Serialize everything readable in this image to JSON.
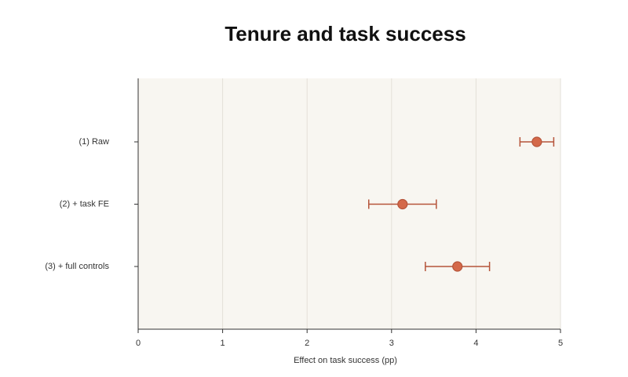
{
  "chart_data": {
    "type": "dot-errorbar",
    "title": "Tenure and task success",
    "xlabel": "Effect on task success (pp)",
    "categories": [
      "(1) Raw",
      "(2) + task FE",
      "(3) + full controls"
    ],
    "values": [
      4.72,
      3.13,
      3.78
    ],
    "errors": [
      0.2,
      0.4,
      0.38
    ],
    "color": "#d4694a",
    "xlim": [
      0,
      5
    ],
    "xticks": [
      0,
      1,
      2,
      3,
      4,
      5
    ],
    "grid": true
  }
}
